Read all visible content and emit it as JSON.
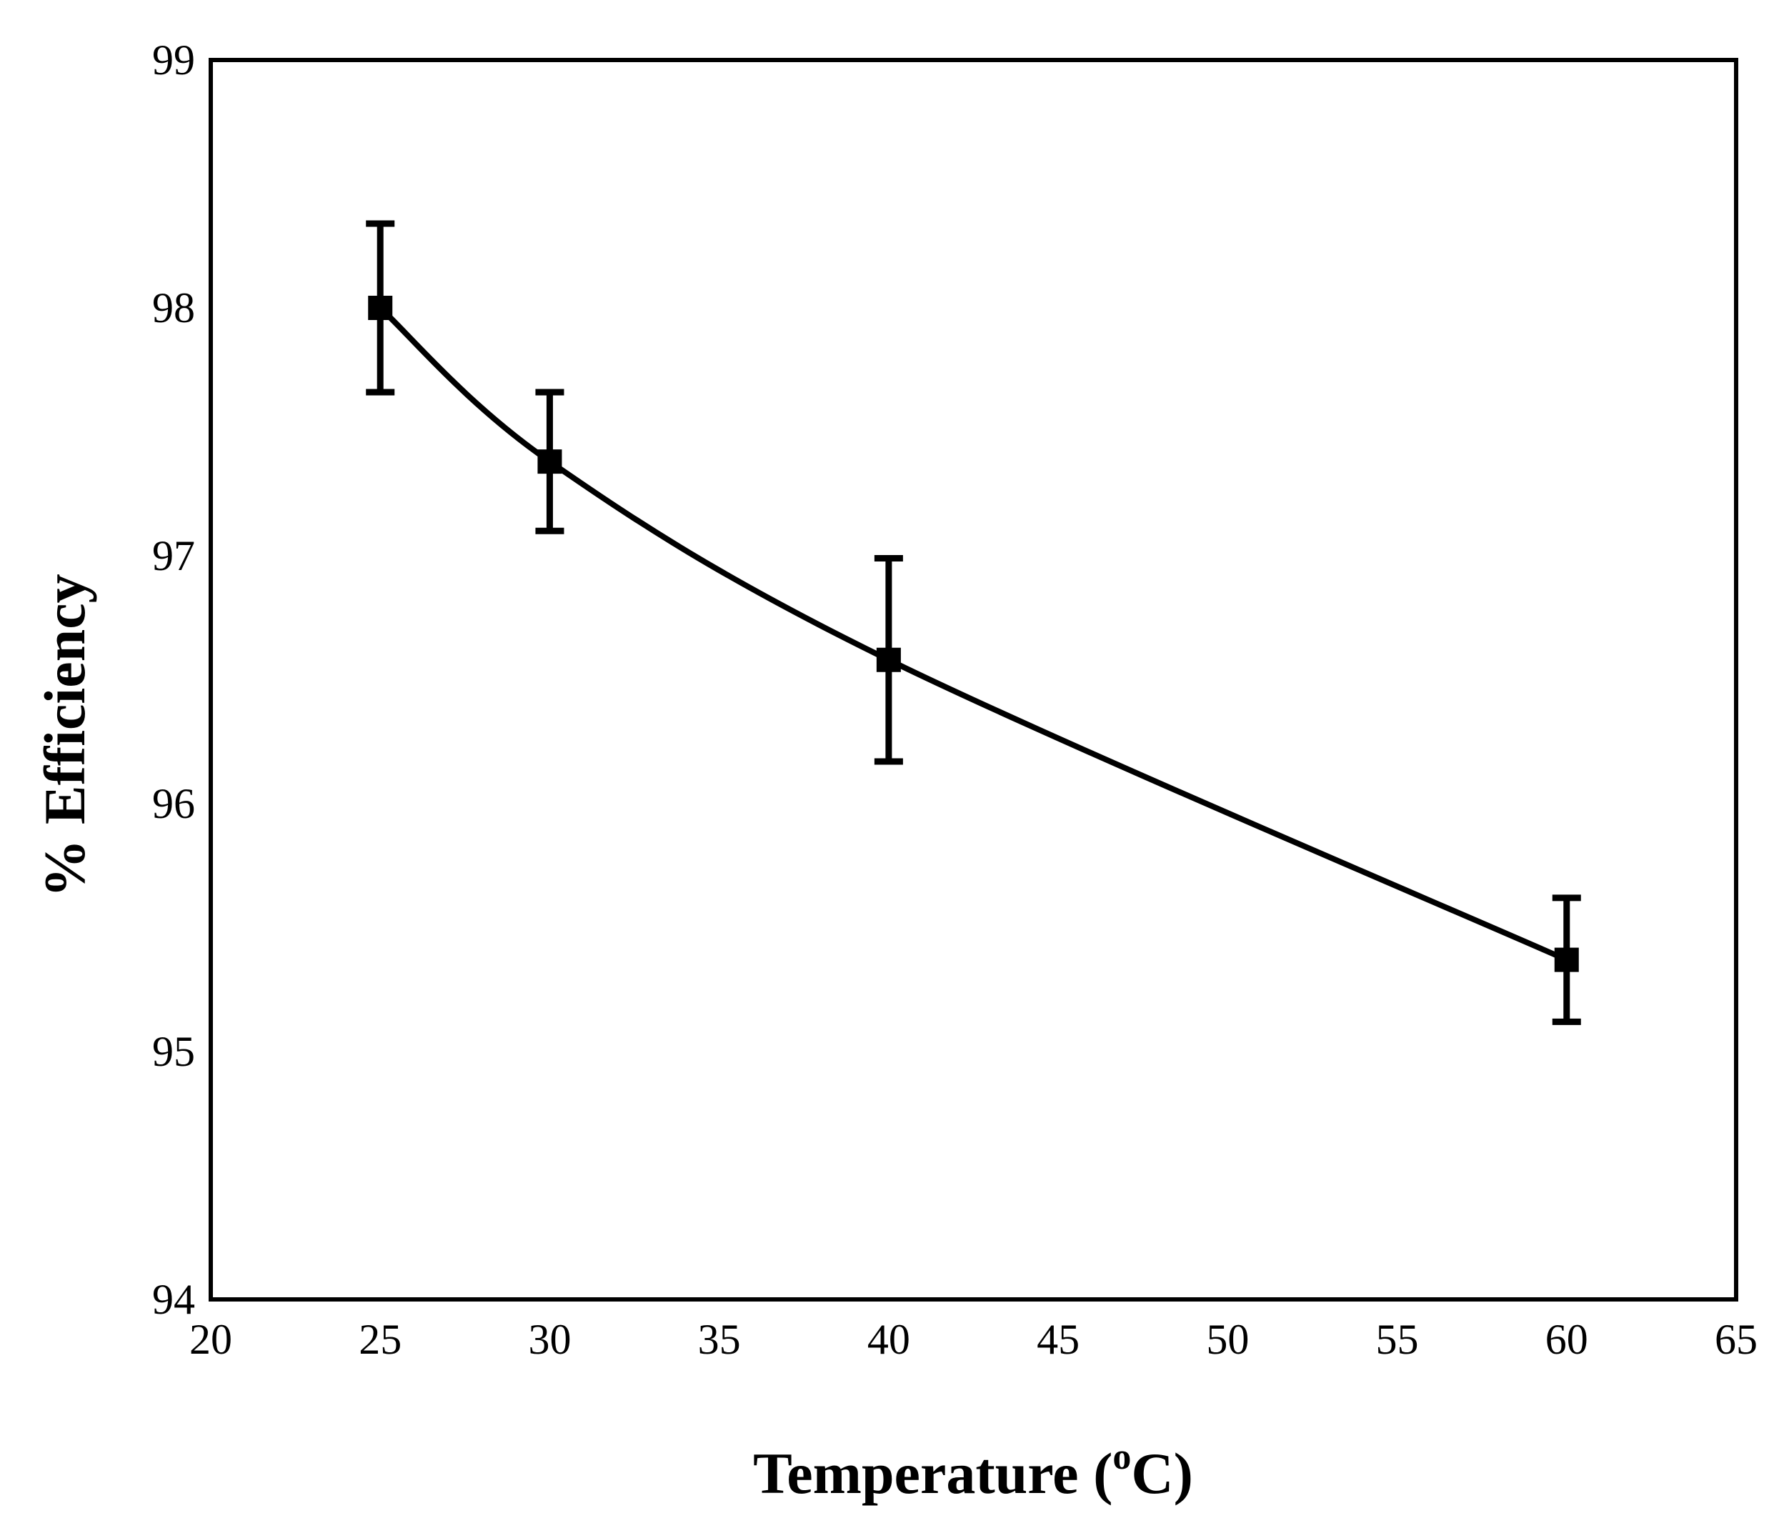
{
  "chart_data": {
    "type": "line",
    "title": "",
    "xlabel": "Temperature (",
    "xlabel_superscript": "o",
    "xlabel_suffix": "C)",
    "ylabel": "% Efficiency",
    "xlim": [
      20,
      65
    ],
    "ylim": [
      94,
      99
    ],
    "xticks": [
      20,
      25,
      30,
      35,
      40,
      45,
      50,
      55,
      60,
      65
    ],
    "yticks": [
      94,
      95,
      96,
      97,
      98,
      99
    ],
    "grid": false,
    "legend": "none",
    "series": [
      {
        "name": "Efficiency",
        "color": "#000000",
        "marker": "square",
        "smooth": true,
        "x": [
          25,
          30,
          40,
          60
        ],
        "y": [
          98.0,
          97.38,
          96.58,
          95.37
        ],
        "error": [
          0.34,
          0.28,
          0.41,
          0.25
        ]
      }
    ]
  }
}
